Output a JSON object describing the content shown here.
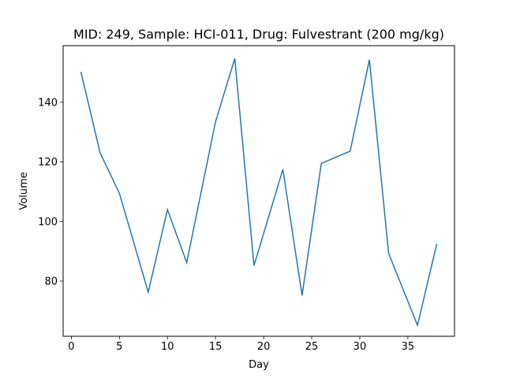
{
  "chart_data": {
    "type": "line",
    "title": "MID: 249, Sample: HCI-011, Drug: Fulvestrant (200 mg/kg)",
    "xlabel": "Day",
    "ylabel": "Volume",
    "xlim": [
      -0.85,
      39.85
    ],
    "ylim": [
      61.5,
      159.0
    ],
    "x_ticks": [
      0,
      5,
      10,
      15,
      20,
      25,
      30,
      35
    ],
    "y_ticks": [
      80,
      100,
      120,
      140
    ],
    "grid": false,
    "line_color": "#1f77b4",
    "series": [
      {
        "x": [
          1,
          3,
          5,
          8,
          10,
          12,
          15,
          17,
          19,
          22,
          24,
          26,
          29,
          31,
          33,
          36,
          38
        ],
        "y": [
          150.2,
          123.0,
          109.5,
          76.3,
          104.0,
          86.2,
          133.5,
          154.7,
          85.2,
          117.5,
          75.2,
          119.5,
          123.6,
          154.3,
          89.3,
          65.2,
          92.4
        ]
      }
    ]
  }
}
